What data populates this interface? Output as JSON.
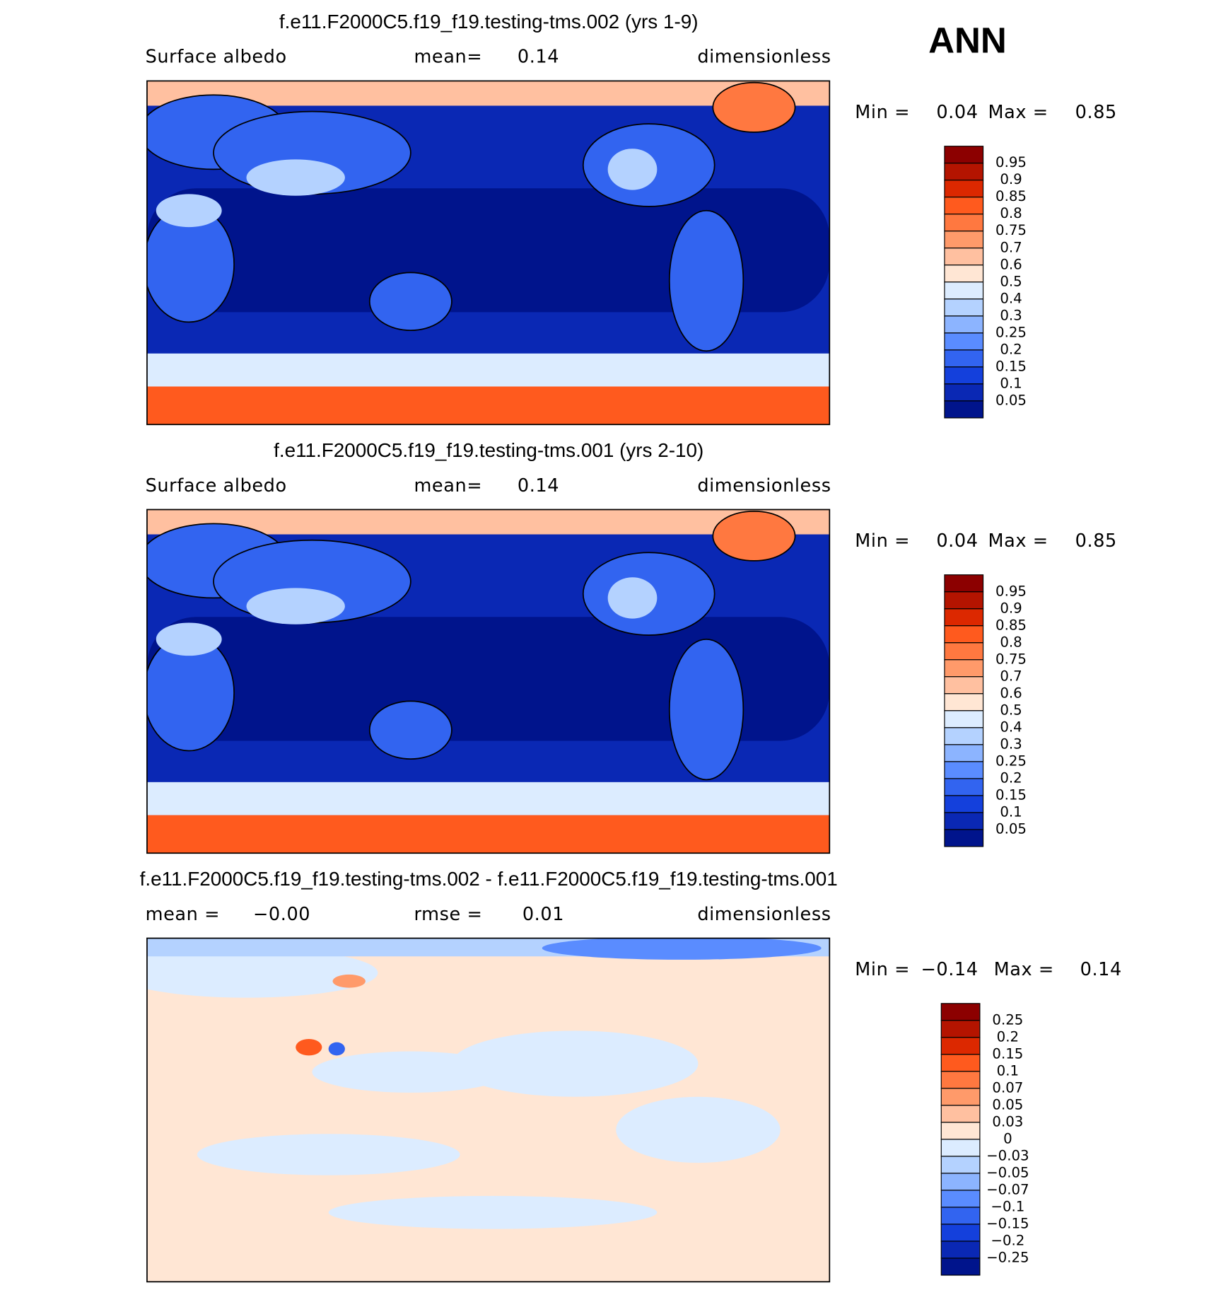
{
  "season": "ANN",
  "panels": [
    {
      "title": "f.e11.F2000C5.f19_f19.testing-tms.002 (yrs 1-9)",
      "left_label": "Surface albedo",
      "center_label": "mean=",
      "center_value": "0.14",
      "units": "dimensionless",
      "min_label": "Min =",
      "min_value": "0.04",
      "max_label": "Max =",
      "max_value": "0.85",
      "colorbar": {
        "labels": [
          "0.95",
          "0.9",
          "0.85",
          "0.8",
          "0.75",
          "0.7",
          "0.6",
          "0.5",
          "0.4",
          "0.3",
          "0.25",
          "0.2",
          "0.15",
          "0.1",
          "0.05"
        ],
        "colors": [
          "#8c0000",
          "#b41400",
          "#dc2800",
          "#ff5a1e",
          "#ff7840",
          "#ff9a6a",
          "#ffc0a0",
          "#ffe6d4",
          "#dcecff",
          "#b4d2ff",
          "#8cb4ff",
          "#5a8cff",
          "#3264f0",
          "#1440dc",
          "#0a28b4",
          "#00148c"
        ]
      }
    },
    {
      "title": "f.e11.F2000C5.f19_f19.testing-tms.001 (yrs 2-10)",
      "left_label": "Surface albedo",
      "center_label": "mean=",
      "center_value": "0.14",
      "units": "dimensionless",
      "min_label": "Min =",
      "min_value": "0.04",
      "max_label": "Max =",
      "max_value": "0.85",
      "colorbar": {
        "labels": [
          "0.95",
          "0.9",
          "0.85",
          "0.8",
          "0.75",
          "0.7",
          "0.6",
          "0.5",
          "0.4",
          "0.3",
          "0.25",
          "0.2",
          "0.15",
          "0.1",
          "0.05"
        ],
        "colors": [
          "#8c0000",
          "#b41400",
          "#dc2800",
          "#ff5a1e",
          "#ff7840",
          "#ff9a6a",
          "#ffc0a0",
          "#ffe6d4",
          "#dcecff",
          "#b4d2ff",
          "#8cb4ff",
          "#5a8cff",
          "#3264f0",
          "#1440dc",
          "#0a28b4",
          "#00148c"
        ]
      }
    },
    {
      "title": "f.e11.F2000C5.f19_f19.testing-tms.002 - f.e11.F2000C5.f19_f19.testing-tms.001",
      "left_label": "mean =",
      "left_value": "−0.00",
      "center_label": "rmse =",
      "center_value": "0.01",
      "units": "dimensionless",
      "min_label": "Min =",
      "min_value": "−0.14",
      "max_label": "Max =",
      "max_value": "0.14",
      "colorbar": {
        "labels": [
          "0.25",
          "0.2",
          "0.15",
          "0.1",
          "0.07",
          "0.05",
          "0.03",
          "0",
          "−0.03",
          "−0.05",
          "−0.07",
          "−0.1",
          "−0.15",
          "−0.2",
          "−0.25"
        ],
        "colors": [
          "#8c0000",
          "#b41400",
          "#dc2800",
          "#ff5a1e",
          "#ff7840",
          "#ff9a6a",
          "#ffc0a0",
          "#ffe6d4",
          "#dcecff",
          "#b4d2ff",
          "#8cb4ff",
          "#5a8cff",
          "#3264f0",
          "#1440dc",
          "#0a28b4",
          "#00148c"
        ]
      }
    }
  ]
}
